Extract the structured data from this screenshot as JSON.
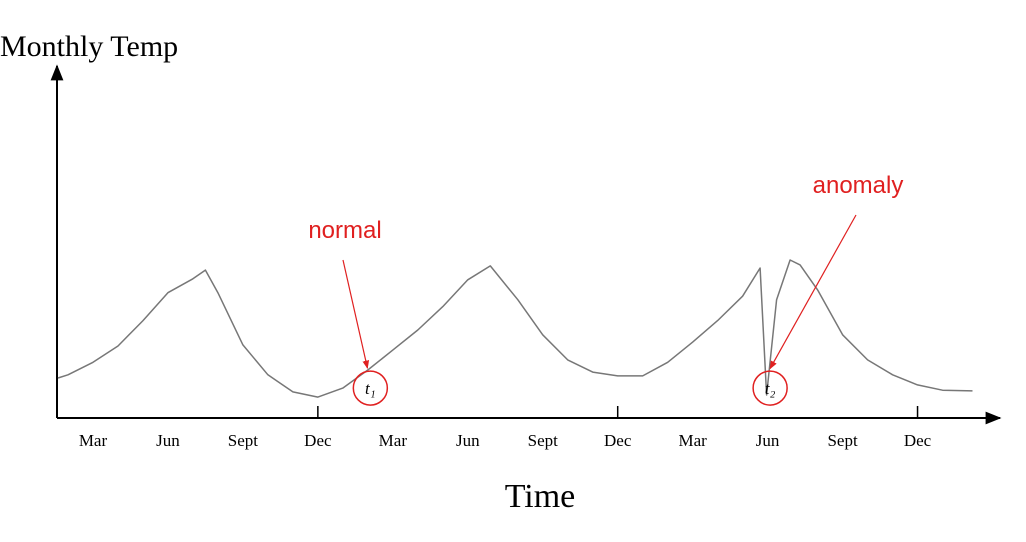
{
  "chart_data": {
    "type": "line",
    "y_label": "Monthly Temp",
    "x_label": "Time",
    "x": [
      0.6,
      1,
      2,
      3,
      4,
      5,
      6,
      6.5,
      7,
      8,
      9,
      10,
      11,
      12,
      13,
      14,
      15,
      16,
      17,
      17.9,
      19,
      20,
      21,
      22,
      23,
      24,
      25,
      26,
      27,
      28,
      28.7,
      28.96,
      29.36,
      29.9,
      30.3,
      31,
      32,
      33,
      34,
      35,
      36,
      37.2
    ],
    "values": [
      11.5,
      12.4,
      16,
      20.7,
      28,
      36,
      40,
      42.5,
      36,
      21,
      12.4,
      7.5,
      6,
      8.6,
      13.8,
      19.5,
      25.3,
      32,
      39.7,
      43.7,
      34,
      23.9,
      16.7,
      13.2,
      12.1,
      12.1,
      16,
      21.8,
      28,
      35,
      43.1,
      6.6,
      34,
      45.4,
      44,
      36.8,
      23.9,
      16.7,
      12.4,
      9.5,
      8,
      7.8
    ],
    "color": "#777777",
    "xlim": [
      0.56,
      38.3
    ],
    "ylim": [
      0,
      100
    ],
    "xticks": [
      {
        "value": 2,
        "label": "Mar"
      },
      {
        "value": 5,
        "label": "Jun"
      },
      {
        "value": 8,
        "label": "Sept"
      },
      {
        "value": 11,
        "label": "Dec"
      },
      {
        "value": 14,
        "label": "Mar"
      },
      {
        "value": 17,
        "label": "Jun"
      },
      {
        "value": 20,
        "label": "Sept"
      },
      {
        "value": 23,
        "label": "Dec"
      },
      {
        "value": 26,
        "label": "Mar"
      },
      {
        "value": 29,
        "label": "Jun"
      },
      {
        "value": 32,
        "label": "Sept"
      },
      {
        "value": 35,
        "label": "Dec"
      }
    ],
    "xtick_marks": [
      11,
      23,
      35
    ],
    "annotations": [
      {
        "text": "normal",
        "marker": "t₁",
        "x": 13.1,
        "y": 8.6
      },
      {
        "text": "anomaly",
        "marker": "t₂",
        "x": 29.1,
        "y": 8.6
      }
    ]
  }
}
